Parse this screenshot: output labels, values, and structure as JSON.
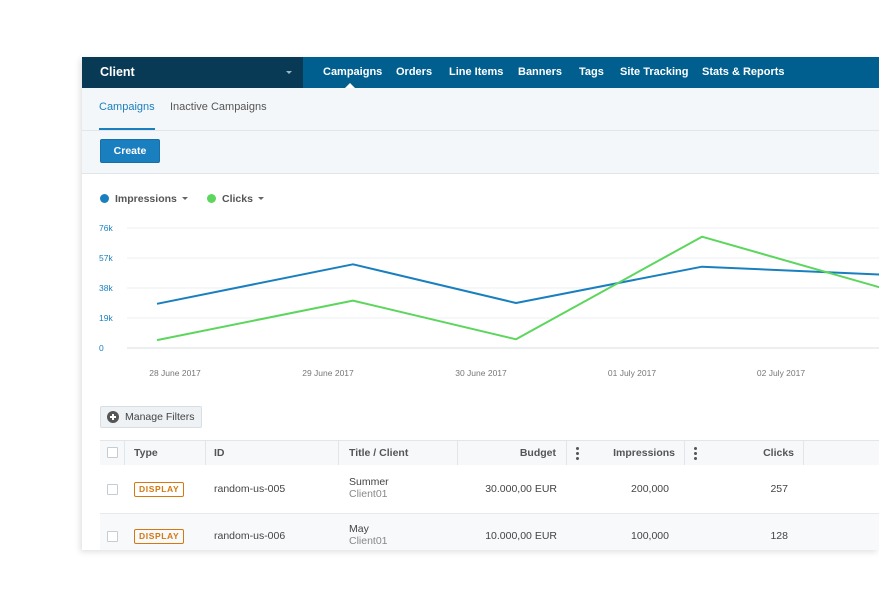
{
  "topbar": {
    "client_label": "Client",
    "nav": [
      "Campaigns",
      "Orders",
      "Line Items",
      "Banners",
      "Tags",
      "Site Tracking",
      "Stats & Reports"
    ],
    "active_nav": "Campaigns"
  },
  "subtabs": [
    "Campaigns",
    "Inactive Campaigns"
  ],
  "actions": {
    "create_label": "Create"
  },
  "legend": [
    {
      "label": "Impressions",
      "color": "#1a7fbf"
    },
    {
      "label": "Clicks",
      "color": "#5cd65c"
    }
  ],
  "chart_data": {
    "type": "line",
    "title": "",
    "x": [
      "28 June 2017",
      "29 June 2017",
      "30 June 2017",
      "01 July 2017",
      "02 July 2017"
    ],
    "y_ticks": [
      "76k",
      "57k",
      "38k",
      "19k",
      "0"
    ],
    "ylim": [
      0,
      76000
    ],
    "grid": true,
    "series": [
      {
        "name": "Impressions",
        "color": "#1a7fbf",
        "values": [
          28000,
          53000,
          28500,
          51500,
          46500
        ]
      },
      {
        "name": "Clicks",
        "color": "#5cd65c",
        "values": [
          5000,
          30000,
          5500,
          70500,
          38000
        ]
      }
    ]
  },
  "filters": {
    "manage_label": "Manage Filters"
  },
  "table": {
    "headers": {
      "type": "Type",
      "id": "ID",
      "title": "Title / Client",
      "budget": "Budget",
      "impressions": "Impressions",
      "clicks": "Clicks"
    },
    "rows": [
      {
        "type": "DISPLAY",
        "id": "random-us-005",
        "title": "Summer",
        "client": "Client01",
        "budget": "30.000,00 EUR",
        "impressions": "200,000",
        "clicks": "257"
      },
      {
        "type": "DISPLAY",
        "id": "random-us-006",
        "title": "May",
        "client": "Client01",
        "budget": "10.000,00 EUR",
        "impressions": "100,000",
        "clicks": "128"
      }
    ]
  }
}
